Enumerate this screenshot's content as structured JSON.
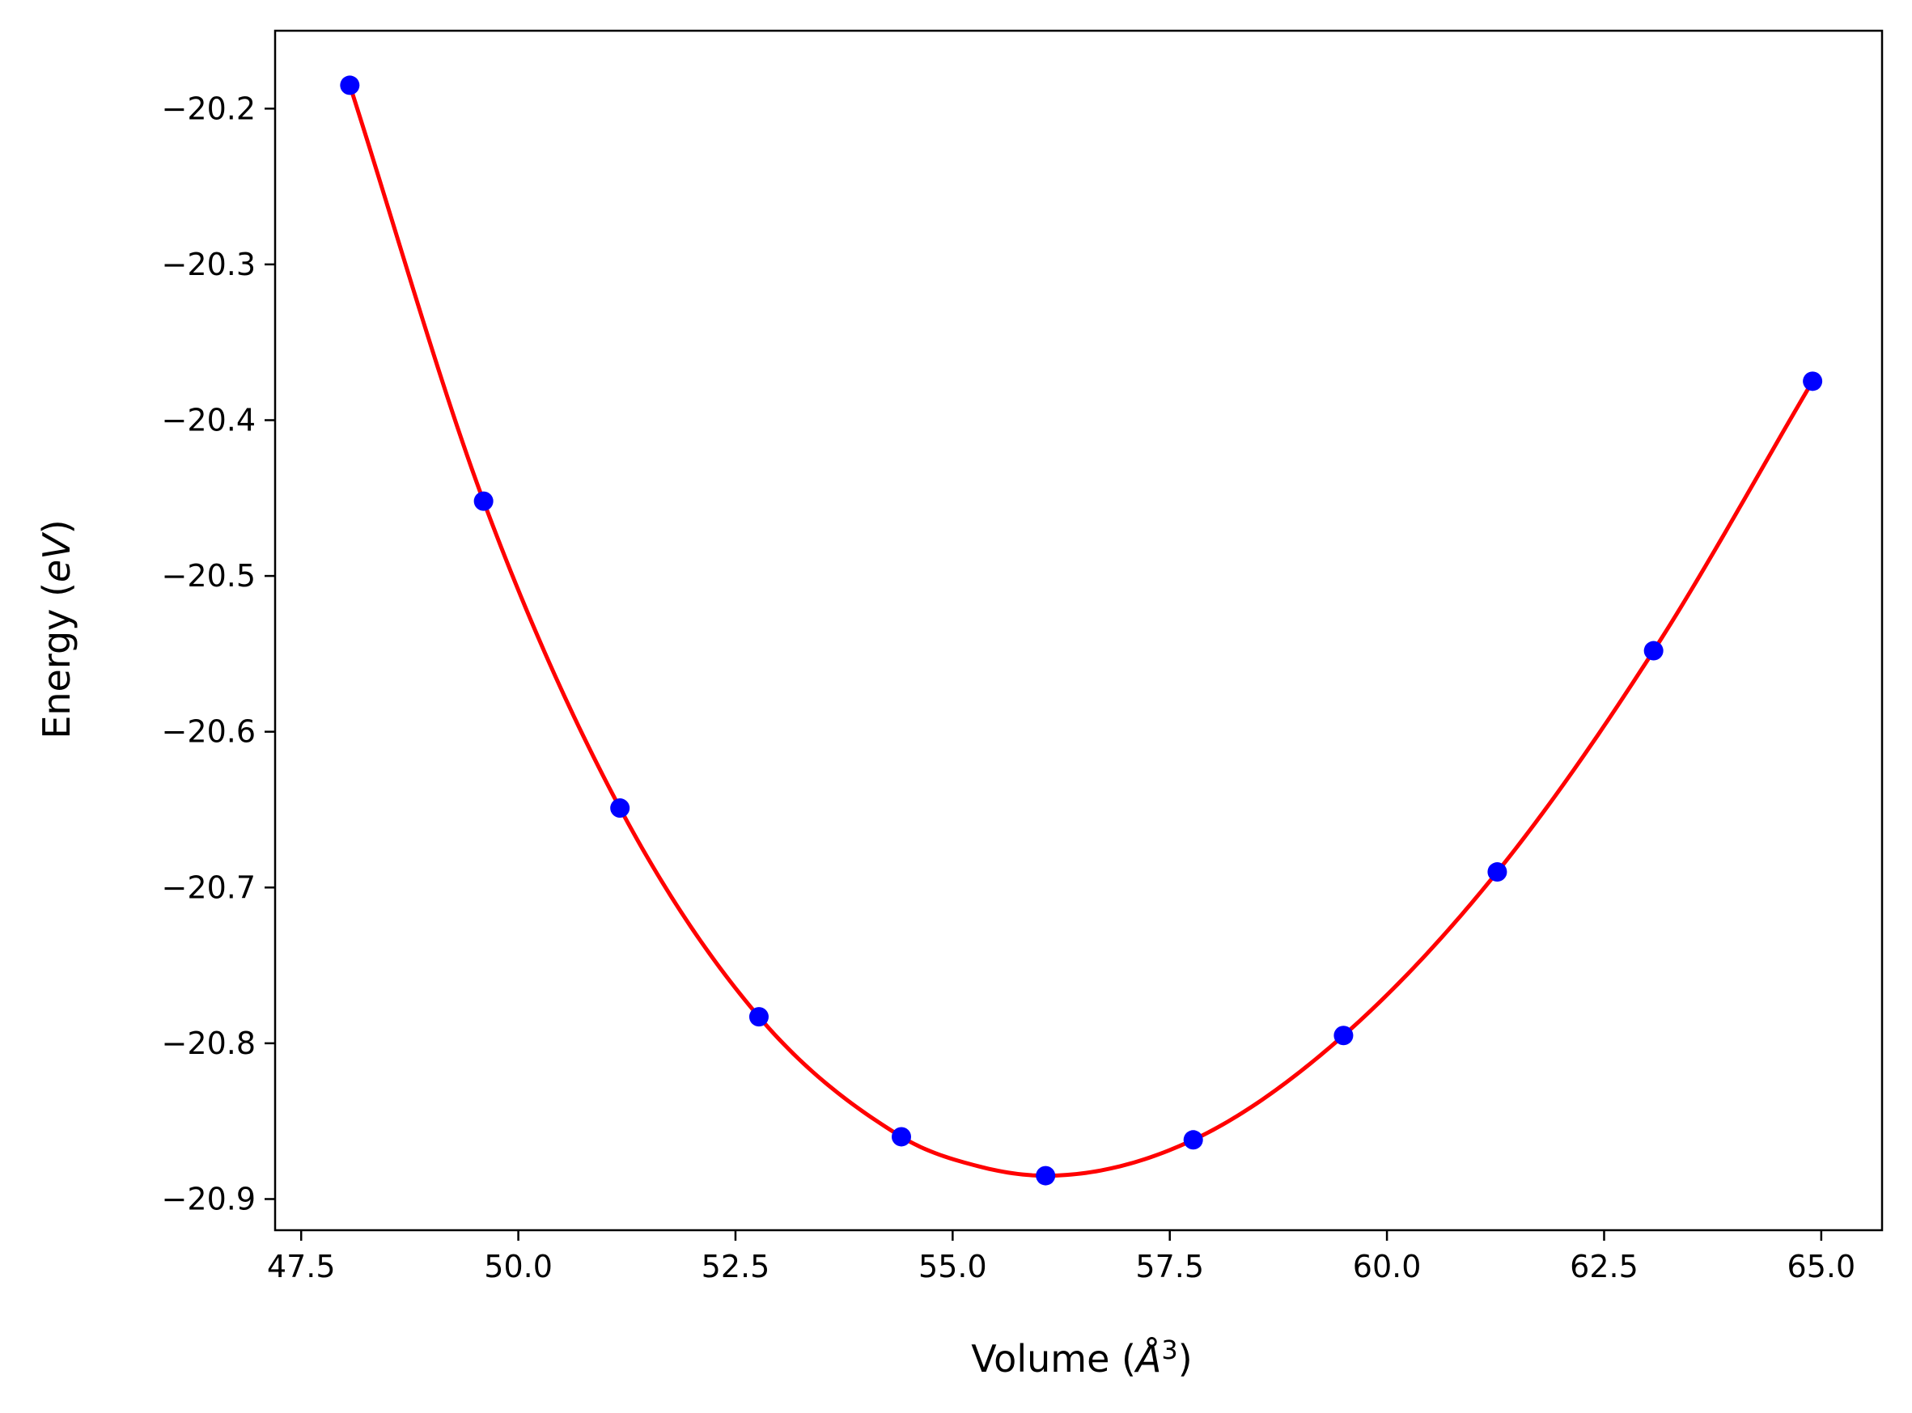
{
  "chart_data": {
    "type": "scatter",
    "title": "",
    "xlabel": {
      "pre": "Volume (",
      "italic": "Å",
      "sup": "3",
      "post": ")"
    },
    "ylabel": {
      "pre": "Energy (",
      "italic": "eV",
      "post": ")"
    },
    "xlim": [
      47.2,
      65.7
    ],
    "ylim": [
      -20.92,
      -20.15
    ],
    "xticks": [
      47.5,
      50.0,
      52.5,
      55.0,
      57.5,
      60.0,
      62.5,
      65.0
    ],
    "xtick_labels": [
      "47.5",
      "50.0",
      "52.5",
      "55.0",
      "57.5",
      "60.0",
      "62.5",
      "65.0"
    ],
    "yticks": [
      -20.2,
      -20.3,
      -20.4,
      -20.5,
      -20.6,
      -20.7,
      -20.8,
      -20.9
    ],
    "ytick_labels": [
      "−20.2",
      "−20.3",
      "−20.4",
      "−20.5",
      "−20.6",
      "−20.7",
      "−20.8",
      "−20.9"
    ],
    "grid": false,
    "series": [
      {
        "kind": "points",
        "color": "#0000ff",
        "x": [
          48.06,
          49.6,
          51.17,
          52.77,
          54.41,
          56.07,
          57.77,
          59.5,
          61.27,
          63.07,
          64.9
        ],
        "y": [
          -20.185,
          -20.452,
          -20.649,
          -20.783,
          -20.86,
          -20.885,
          -20.862,
          -20.795,
          -20.69,
          -20.548,
          -20.375
        ]
      },
      {
        "kind": "fit-curve",
        "color": "#ff0000",
        "x": [
          48.06,
          49.6,
          51.17,
          52.77,
          54.41,
          55.3,
          56.07,
          57.77,
          59.5,
          61.27,
          63.07,
          64.9
        ],
        "y": [
          -20.185,
          -20.452,
          -20.649,
          -20.783,
          -20.86,
          -20.879,
          -20.885,
          -20.862,
          -20.795,
          -20.69,
          -20.548,
          -20.375
        ]
      }
    ]
  }
}
